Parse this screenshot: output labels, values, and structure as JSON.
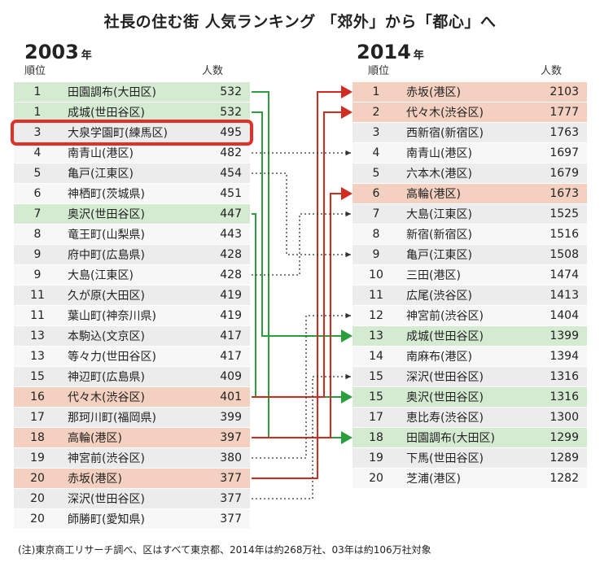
{
  "title": "社長の住む街 人気ランキング 「郊外」から「都心」へ",
  "note": "(注)東京商工リサーチ調べ、区はすべて東京都、2014年は約268万社、03年は約106万社対象",
  "colors": {
    "green": "#2a9d3c",
    "red": "#d12b22",
    "dotted": "#333333",
    "highlight": "#e0302a",
    "green_row": "#d4ebd2",
    "salmon_row": "#f4d0c0"
  },
  "chart_data": {
    "type": "table",
    "left": {
      "year": "2003",
      "year_suffix": "年",
      "col_rank": "順位",
      "col_count": "人数",
      "rows": [
        {
          "rank": "1",
          "city": "田園調布(大田区)",
          "count": "532",
          "tone": "green"
        },
        {
          "rank": "1",
          "city": "成城(世田谷区)",
          "count": "532",
          "tone": "green"
        },
        {
          "rank": "3",
          "city": "大泉学園町(練馬区)",
          "count": "495",
          "tone": "plain"
        },
        {
          "rank": "4",
          "city": "南青山(港区)",
          "count": "482",
          "tone": "plain"
        },
        {
          "rank": "5",
          "city": "亀戸(江東区)",
          "count": "454",
          "tone": "plain"
        },
        {
          "rank": "6",
          "city": "神栖町(茨城県)",
          "count": "451",
          "tone": "plain"
        },
        {
          "rank": "7",
          "city": "奥沢(世田谷区)",
          "count": "447",
          "tone": "green"
        },
        {
          "rank": "8",
          "city": "竜王町(山梨県)",
          "count": "443",
          "tone": "plain"
        },
        {
          "rank": "9",
          "city": "府中町(広島県)",
          "count": "428",
          "tone": "plain"
        },
        {
          "rank": "9",
          "city": "大島(江東区)",
          "count": "428",
          "tone": "plain"
        },
        {
          "rank": "11",
          "city": "久が原(大田区)",
          "count": "419",
          "tone": "plain"
        },
        {
          "rank": "11",
          "city": "葉山町(神奈川県)",
          "count": "419",
          "tone": "plain"
        },
        {
          "rank": "13",
          "city": "本駒込(文京区)",
          "count": "417",
          "tone": "plain"
        },
        {
          "rank": "13",
          "city": "等々力(世田谷区)",
          "count": "417",
          "tone": "plain"
        },
        {
          "rank": "15",
          "city": "神辺町(広島県)",
          "count": "409",
          "tone": "plain"
        },
        {
          "rank": "16",
          "city": "代々木(渋谷区)",
          "count": "401",
          "tone": "salmon"
        },
        {
          "rank": "17",
          "city": "那珂川町(福岡県)",
          "count": "399",
          "tone": "plain"
        },
        {
          "rank": "18",
          "city": "高輪(港区)",
          "count": "397",
          "tone": "salmon"
        },
        {
          "rank": "19",
          "city": "神宮前(渋谷区)",
          "count": "380",
          "tone": "plain"
        },
        {
          "rank": "20",
          "city": "赤坂(港区)",
          "count": "377",
          "tone": "salmon"
        },
        {
          "rank": "20",
          "city": "深沢(世田谷区)",
          "count": "377",
          "tone": "plain"
        },
        {
          "rank": "20",
          "city": "師勝町(愛知県)",
          "count": "377",
          "tone": "plain"
        }
      ]
    },
    "right": {
      "year": "2014",
      "year_suffix": "年",
      "col_rank": "順位",
      "col_count": "人数",
      "rows": [
        {
          "rank": "1",
          "city": "赤坂(港区)",
          "count": "2103",
          "tone": "salmon"
        },
        {
          "rank": "2",
          "city": "代々木(渋谷区)",
          "count": "1777",
          "tone": "salmon"
        },
        {
          "rank": "3",
          "city": "西新宿(新宿区)",
          "count": "1763",
          "tone": "plain"
        },
        {
          "rank": "4",
          "city": "南青山(港区)",
          "count": "1697",
          "tone": "plain"
        },
        {
          "rank": "5",
          "city": "六本木(港区)",
          "count": "1679",
          "tone": "plain"
        },
        {
          "rank": "6",
          "city": "高輪(港区)",
          "count": "1673",
          "tone": "salmon"
        },
        {
          "rank": "7",
          "city": "大島(江東区)",
          "count": "1525",
          "tone": "plain"
        },
        {
          "rank": "8",
          "city": "新宿(新宿区)",
          "count": "1516",
          "tone": "plain"
        },
        {
          "rank": "9",
          "city": "亀戸(江東区)",
          "count": "1508",
          "tone": "plain"
        },
        {
          "rank": "10",
          "city": "三田(港区)",
          "count": "1474",
          "tone": "plain"
        },
        {
          "rank": "11",
          "city": "広尾(渋谷区)",
          "count": "1413",
          "tone": "plain"
        },
        {
          "rank": "12",
          "city": "神宮前(渋谷区)",
          "count": "1404",
          "tone": "plain"
        },
        {
          "rank": "13",
          "city": "成城(世田谷区)",
          "count": "1399",
          "tone": "green"
        },
        {
          "rank": "14",
          "city": "南麻布(港区)",
          "count": "1394",
          "tone": "plain"
        },
        {
          "rank": "15",
          "city": "深沢(世田谷区)",
          "count": "1316",
          "tone": "plain"
        },
        {
          "rank": "15",
          "city": "奥沢(世田谷区)",
          "count": "1316",
          "tone": "green"
        },
        {
          "rank": "17",
          "city": "恵比寿(渋谷区)",
          "count": "1300",
          "tone": "plain"
        },
        {
          "rank": "18",
          "city": "田園調布(大田区)",
          "count": "1299",
          "tone": "green"
        },
        {
          "rank": "19",
          "city": "下馬(世田谷区)",
          "count": "1289",
          "tone": "plain"
        },
        {
          "rank": "20",
          "city": "芝浦(港区)",
          "count": "1282",
          "tone": "plain"
        }
      ]
    },
    "links": [
      {
        "from": 0,
        "to": 17,
        "style": "green"
      },
      {
        "from": 1,
        "to": 12,
        "style": "green"
      },
      {
        "from": 6,
        "to": 15,
        "style": "green"
      },
      {
        "from": 15,
        "to": 1,
        "style": "red"
      },
      {
        "from": 17,
        "to": 5,
        "style": "red"
      },
      {
        "from": 19,
        "to": 0,
        "style": "red"
      },
      {
        "from": 3,
        "to": 3,
        "style": "dotted"
      },
      {
        "from": 4,
        "to": 8,
        "style": "dotted"
      },
      {
        "from": 9,
        "to": 6,
        "style": "dotted"
      },
      {
        "from": 18,
        "to": 11,
        "style": "dotted"
      },
      {
        "from": 20,
        "to": 14,
        "style": "dotted"
      }
    ],
    "highlighted_row": 2
  }
}
